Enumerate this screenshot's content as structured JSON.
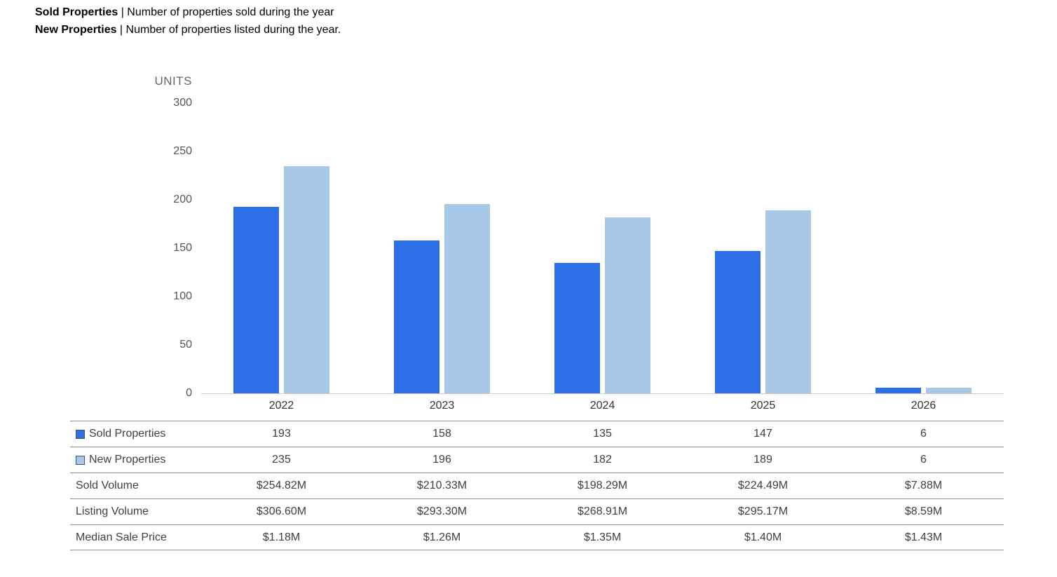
{
  "header": {
    "lines": [
      {
        "term": "Sold Properties",
        "rest": " | Number of properties sold during the year"
      },
      {
        "term": "New Properties",
        "rest": " | Number of properties listed during the year."
      }
    ]
  },
  "chart_data": {
    "type": "bar",
    "title": "",
    "xlabel": "",
    "ylabel": "UNITS",
    "ylim": [
      0,
      300
    ],
    "yticks": [
      0,
      50,
      100,
      150,
      200,
      250,
      300
    ],
    "grid": false,
    "legend_position": "table-left",
    "categories": [
      "2022",
      "2023",
      "2024",
      "2025",
      "2026"
    ],
    "series": [
      {
        "name": "Sold Properties",
        "color": "#2d6fe6",
        "values": [
          193,
          158,
          135,
          147,
          6
        ]
      },
      {
        "name": "New Properties",
        "color": "#a9c7e6",
        "values": [
          235,
          196,
          182,
          189,
          6
        ]
      }
    ]
  },
  "table": {
    "rows": [
      {
        "label": "Sold Properties",
        "swatch": "#2d6fe6",
        "values": [
          "193",
          "158",
          "135",
          "147",
          "6"
        ]
      },
      {
        "label": "New Properties",
        "swatch": "#a9c7e6",
        "values": [
          "235",
          "196",
          "182",
          "189",
          "6"
        ]
      },
      {
        "label": "Sold Volume",
        "swatch": null,
        "values": [
          "$254.82M",
          "$210.33M",
          "$198.29M",
          "$224.49M",
          "$7.88M"
        ]
      },
      {
        "label": "Listing Volume",
        "swatch": null,
        "values": [
          "$306.60M",
          "$293.30M",
          "$268.91M",
          "$295.17M",
          "$8.59M"
        ]
      },
      {
        "label": "Median Sale Price",
        "swatch": null,
        "values": [
          "$1.18M",
          "$1.26M",
          "$1.35M",
          "$1.40M",
          "$1.43M"
        ]
      }
    ]
  }
}
